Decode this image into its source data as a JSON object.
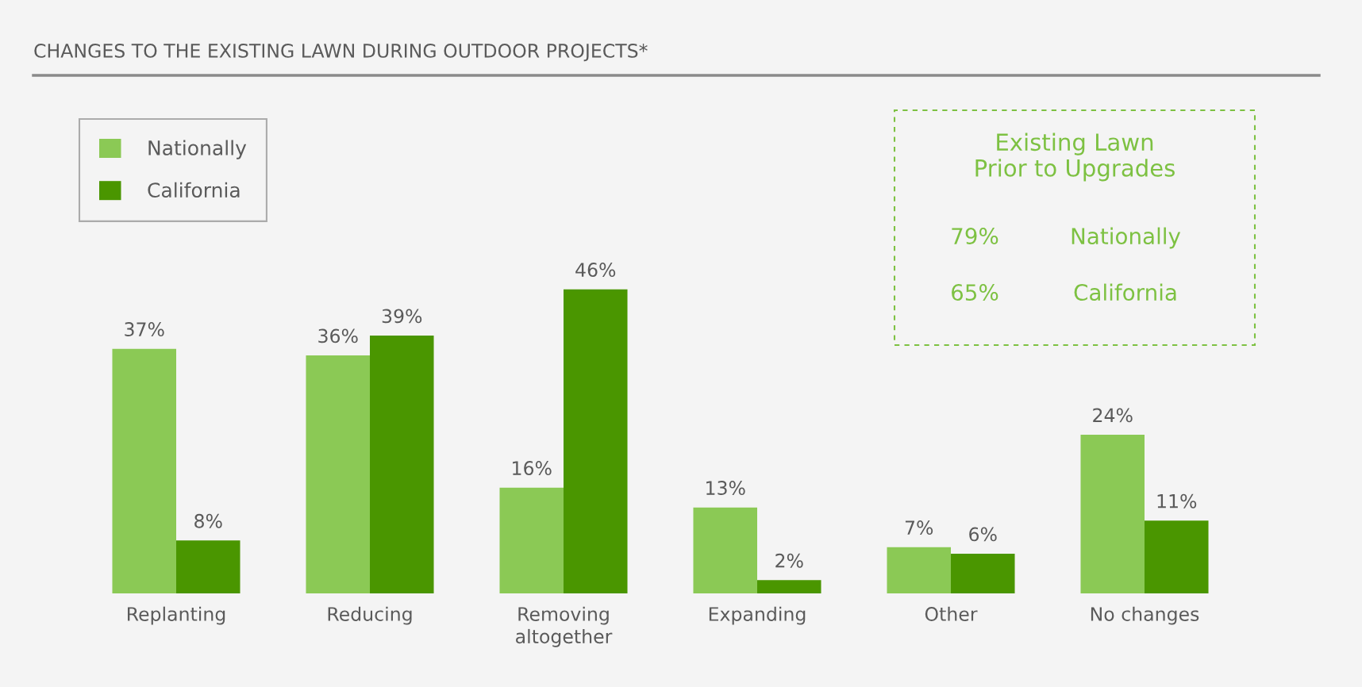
{
  "chart_data": {
    "type": "bar",
    "title": "CHANGES TO THE EXISTING LAWN DURING OUTDOOR PROJECTS*",
    "categories": [
      "Replanting",
      "Reducing",
      "Removing\naltogether",
      "Expanding",
      "Other",
      "No changes"
    ],
    "series": [
      {
        "name": "Nationally",
        "color": "#8bc955",
        "values": [
          37,
          36,
          16,
          13,
          7,
          24
        ],
        "value_labels": [
          "37%",
          "36%",
          "16%",
          "13%",
          "7%",
          "24%"
        ]
      },
      {
        "name": "California",
        "color": "#4a9600",
        "values": [
          8,
          39,
          46,
          2,
          6,
          11
        ],
        "value_labels": [
          "8%",
          "39%",
          "46%",
          "2%",
          "6%",
          "11%"
        ]
      }
    ],
    "legend": "top left",
    "grid": false,
    "annotations": [
      "Existing Lawn\nPrior to Upgrades",
      "79%",
      "Nationally",
      "65%",
      "California"
    ]
  }
}
